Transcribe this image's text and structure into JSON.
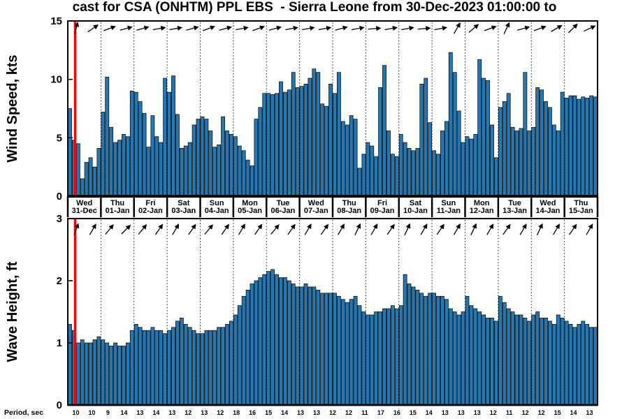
{
  "title": "cast for CSA (ONHTM) PPL EBS  - Sierra Leone from 30-Dec-2023 01:00:00 to",
  "colors": {
    "bar_fill": "#2577b2",
    "bar_edge": "#000000",
    "now_line": "#ff0000",
    "axis": "#000000"
  },
  "day_labels": [
    {
      "weekday": "Wed",
      "date": "31-Dec"
    },
    {
      "weekday": "Thu",
      "date": "01-Jan"
    },
    {
      "weekday": "Fri",
      "date": "02-Jan"
    },
    {
      "weekday": "Sat",
      "date": "03-Jan"
    },
    {
      "weekday": "Sun",
      "date": "04-Jan"
    },
    {
      "weekday": "Mon",
      "date": "05-Jan"
    },
    {
      "weekday": "Tue",
      "date": "06-Jan"
    },
    {
      "weekday": "Wed",
      "date": "07-Jan"
    },
    {
      "weekday": "Thu",
      "date": "08-Jan"
    },
    {
      "weekday": "Fri",
      "date": "09-Jan"
    },
    {
      "weekday": "Sat",
      "date": "10-Jan"
    },
    {
      "weekday": "Sun",
      "date": "11-Jan"
    },
    {
      "weekday": "Mon",
      "date": "12-Jan"
    },
    {
      "weekday": "Tue",
      "date": "13-Jan"
    },
    {
      "weekday": "Wed",
      "date": "14-Jan"
    },
    {
      "weekday": "Thu",
      "date": "15-Jan"
    }
  ],
  "period_row": {
    "label": "Period, sec",
    "values": [
      10,
      10,
      9,
      14,
      13,
      14,
      13,
      12,
      13,
      12,
      18,
      16,
      15,
      14,
      13,
      13,
      12,
      12,
      11,
      17,
      16,
      15,
      14,
      13,
      13,
      13,
      12,
      11,
      12,
      12,
      15,
      14,
      13
    ]
  },
  "chart_data": [
    {
      "type": "bar",
      "name": "wind",
      "title": "Wind forecast",
      "ylabel": "Wind Speed, kts",
      "ylim": [
        0,
        15
      ],
      "yticks": [
        0,
        5,
        10,
        15
      ],
      "bars_per_day": 8,
      "values": [
        7.5,
        4.8,
        4.5,
        1.5,
        2.9,
        3.3,
        2.5,
        4.1,
        7.2,
        10.2,
        5.9,
        4.6,
        4.8,
        5.3,
        5.1,
        9.0,
        8.9,
        8.1,
        7.1,
        4.2,
        6.9,
        5.1,
        4.6,
        10.1,
        8.9,
        10.3,
        7.0,
        4.1,
        4.3,
        4.6,
        6.1,
        6.6,
        6.8,
        6.6,
        5.6,
        4.2,
        4.4,
        6.8,
        5.6,
        5.3,
        5.1,
        4.3,
        3.9,
        3.1,
        2.6,
        6.6,
        7.6,
        8.8,
        8.8,
        8.7,
        8.8,
        9.8,
        8.9,
        9.1,
        10.6,
        9.3,
        9.4,
        9.6,
        10.1,
        10.9,
        10.6,
        7.9,
        7.7,
        9.6,
        8.8,
        10.6,
        6.4,
        6.1,
        6.9,
        6.6,
        2.4,
        3.6,
        4.6,
        4.3,
        3.4,
        9.3,
        11.2,
        5.6,
        3.6,
        3.4,
        5.3,
        4.6,
        4.1,
        3.9,
        4.1,
        9.6,
        10.1,
        6.3,
        3.9,
        3.6,
        5.6,
        6.4,
        12.3,
        10.6,
        7.3,
        4.6,
        5.1,
        4.9,
        5.3,
        11.7,
        10.1,
        9.9,
        6.1,
        3.3,
        7.6,
        8.1,
        8.8,
        5.9,
        5.6,
        5.8,
        10.6,
        5.6,
        5.9,
        9.3,
        9.1,
        8.1,
        7.6,
        6.1,
        5.6,
        8.9,
        8.4,
        8.6,
        8.6,
        8.3,
        8.5,
        8.4,
        8.6,
        8.5
      ],
      "arrow_angles_deg": [
        75,
        35,
        20,
        15,
        15,
        10,
        10,
        15,
        20,
        15,
        10,
        20,
        15,
        10,
        10,
        10,
        15,
        10,
        5,
        10,
        10,
        5,
        10,
        60,
        40,
        20,
        65,
        15,
        20,
        30,
        45,
        25
      ]
    },
    {
      "type": "bar",
      "name": "wave",
      "title": "Wave forecast",
      "ylabel": "Wave Height, ft",
      "ylim": [
        0,
        3
      ],
      "yticks": [
        0,
        1,
        2,
        3
      ],
      "bars_per_day": 8,
      "values": [
        1.3,
        1.2,
        1.0,
        1.05,
        1.0,
        1.0,
        1.05,
        1.1,
        1.05,
        1.0,
        0.95,
        1.0,
        0.95,
        0.95,
        1.0,
        1.2,
        1.3,
        1.25,
        1.2,
        1.2,
        1.25,
        1.2,
        1.2,
        1.15,
        1.2,
        1.25,
        1.35,
        1.4,
        1.3,
        1.25,
        1.2,
        1.15,
        1.15,
        1.2,
        1.2,
        1.2,
        1.25,
        1.25,
        1.3,
        1.35,
        1.45,
        1.6,
        1.75,
        1.85,
        1.95,
        2.0,
        2.05,
        2.1,
        2.15,
        2.18,
        2.1,
        2.05,
        2.05,
        2.0,
        1.95,
        1.9,
        1.9,
        1.95,
        1.9,
        1.9,
        1.85,
        1.8,
        1.8,
        1.8,
        1.8,
        1.75,
        1.7,
        1.65,
        1.7,
        1.75,
        1.6,
        1.5,
        1.45,
        1.45,
        1.5,
        1.5,
        1.55,
        1.55,
        1.6,
        1.55,
        1.6,
        2.1,
        1.95,
        1.9,
        1.85,
        1.8,
        1.75,
        1.8,
        1.8,
        1.75,
        1.75,
        1.7,
        1.55,
        1.5,
        1.45,
        1.5,
        1.75,
        1.6,
        1.55,
        1.5,
        1.45,
        1.4,
        1.4,
        1.35,
        1.75,
        1.65,
        1.55,
        1.5,
        1.45,
        1.45,
        1.4,
        1.35,
        1.45,
        1.5,
        1.4,
        1.4,
        1.35,
        1.3,
        1.45,
        1.4,
        1.35,
        1.3,
        1.25,
        1.3,
        1.35,
        1.3,
        1.25,
        1.25
      ],
      "arrow_angles_deg": [
        70,
        60,
        50,
        45,
        50,
        55,
        60,
        55,
        50,
        55,
        60,
        55,
        50,
        55,
        60,
        55,
        60,
        65,
        60,
        55,
        65,
        60,
        55,
        60,
        65,
        60,
        55,
        60,
        65,
        60,
        55,
        60
      ]
    }
  ]
}
